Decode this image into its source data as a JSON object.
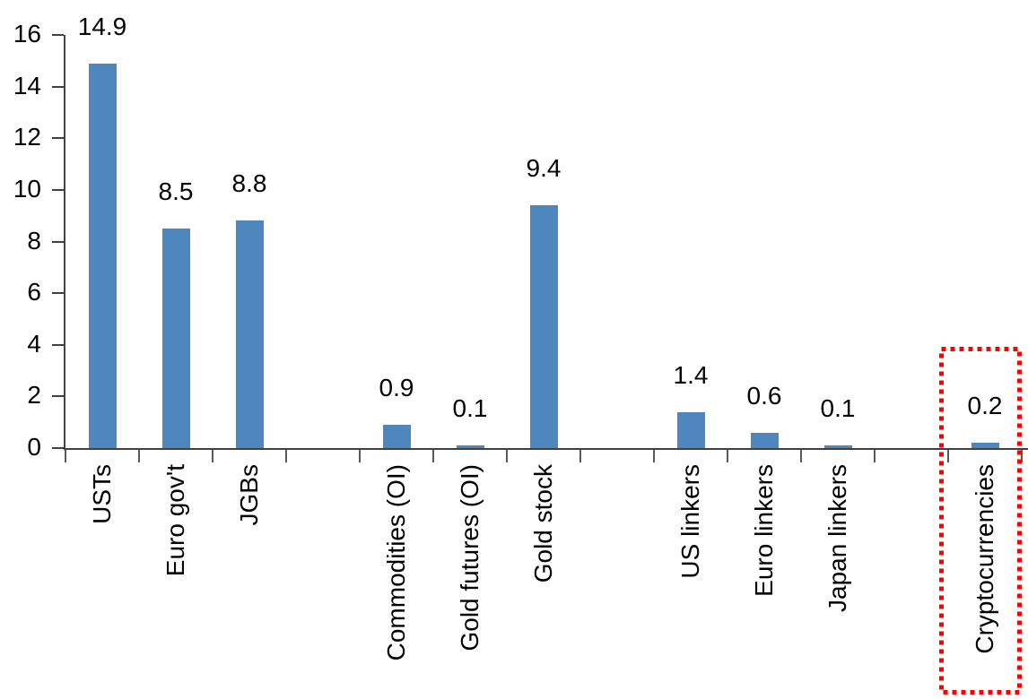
{
  "chart_data": {
    "type": "bar",
    "title": "",
    "xlabel": "",
    "ylabel": "",
    "ylim": [
      0,
      16
    ],
    "y_ticks": [
      "0",
      "2",
      "4",
      "6",
      "8",
      "10",
      "12",
      "14",
      "16"
    ],
    "grid": false,
    "legend": "none",
    "bar_color": "#4E86BE",
    "axis_color": "#404040",
    "highlight_color": "#FF0000",
    "slots_total": 13,
    "categories": [
      "USTs",
      "Euro gov't",
      "JGBs",
      "Commodities (OI)",
      "Gold futures (OI)",
      "Gold stock",
      "US linkers",
      "Euro linkers",
      "Japan linkers",
      "Cryptocurrencies"
    ],
    "values": [
      14.9,
      8.5,
      8.8,
      0.9,
      0.1,
      9.4,
      1.4,
      0.6,
      0.1,
      0.2
    ],
    "items": [
      {
        "label": "USTs",
        "value": 14.9,
        "value_label": "14.9",
        "slot": 0,
        "highlighted": false
      },
      {
        "label": "Euro gov't",
        "value": 8.5,
        "value_label": "8.5",
        "slot": 1,
        "highlighted": false
      },
      {
        "label": "JGBs",
        "value": 8.8,
        "value_label": "8.8",
        "slot": 2,
        "highlighted": false
      },
      {
        "label": "Commodities (OI)",
        "value": 0.9,
        "value_label": "0.9",
        "slot": 4,
        "highlighted": false
      },
      {
        "label": "Gold futures (OI)",
        "value": 0.1,
        "value_label": "0.1",
        "slot": 5,
        "highlighted": false
      },
      {
        "label": "Gold stock",
        "value": 9.4,
        "value_label": "9.4",
        "slot": 6,
        "highlighted": false
      },
      {
        "label": "US linkers",
        "value": 1.4,
        "value_label": "1.4",
        "slot": 8,
        "highlighted": false
      },
      {
        "label": "Euro linkers",
        "value": 0.6,
        "value_label": "0.6",
        "slot": 9,
        "highlighted": false
      },
      {
        "label": "Japan linkers",
        "value": 0.1,
        "value_label": "0.1",
        "slot": 10,
        "highlighted": false
      },
      {
        "label": "Cryptocurrencies",
        "value": 0.2,
        "value_label": "0.2",
        "slot": 12,
        "highlighted": true
      }
    ],
    "highlight": {
      "label": "Cryptocurrencies",
      "style": "red-dotted-box"
    }
  }
}
